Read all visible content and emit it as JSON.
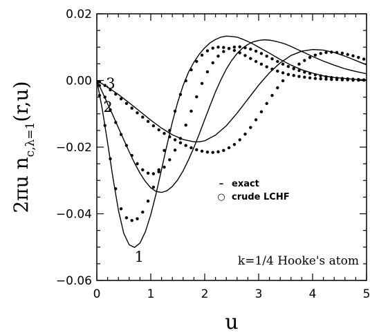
{
  "chart_data": {
    "type": "line",
    "xlabel": "u",
    "ylabel_main": "2πu n",
    "ylabel_sub": "c,λ=1",
    "ylabel_args": "(r,u)",
    "xlim": [
      0,
      5
    ],
    "ylim": [
      -0.06,
      0.02
    ],
    "x_ticks": [
      0,
      1,
      2,
      3,
      4,
      5
    ],
    "x_tick_labels": [
      "0",
      "1",
      "2",
      "3",
      "4",
      "5"
    ],
    "y_ticks": [
      -0.06,
      -0.04,
      -0.02,
      0.0,
      0.02
    ],
    "y_tick_labels": [
      "−0.06",
      "−0.04",
      "−0.02",
      "0.00",
      "0.02"
    ],
    "grid": false,
    "legend": {
      "position": "center-right",
      "entries": [
        {
          "symbol": "–",
          "label": "exact"
        },
        {
          "symbol": "○",
          "label": "crude LCHF"
        }
      ]
    },
    "annotation": "k=1/4 Hooke's atom",
    "curve_labels": [
      {
        "text": "1",
        "x": 0.7,
        "y": -0.0515
      },
      {
        "text": "2",
        "x": 0.12,
        "y": -0.0065
      },
      {
        "text": "3",
        "x": 0.17,
        "y": 0.0005
      }
    ],
    "series": [
      {
        "label": "1",
        "style": "line",
        "x": [
          0,
          0.1,
          0.2,
          0.3,
          0.4,
          0.5,
          0.6,
          0.7,
          0.8,
          0.9,
          1.0,
          1.1,
          1.2,
          1.3,
          1.4,
          1.5,
          1.6,
          1.7,
          1.8,
          1.9,
          2.0,
          2.1,
          2.2,
          2.3,
          2.4,
          2.5,
          2.6,
          2.7,
          2.8,
          2.9,
          3.0,
          3.2,
          3.4,
          3.6,
          3.8,
          4.0,
          4.2,
          4.4,
          4.6,
          4.8,
          5.0
        ],
        "y": [
          0.0,
          -0.0085,
          -0.0187,
          -0.0293,
          -0.0389,
          -0.0459,
          -0.0493,
          -0.0501,
          -0.0488,
          -0.0454,
          -0.0403,
          -0.0339,
          -0.0267,
          -0.0194,
          -0.0125,
          -0.0065,
          -0.0015,
          0.0025,
          0.0055,
          0.0079,
          0.0098,
          0.0113,
          0.0123,
          0.013,
          0.0133,
          0.0132,
          0.013,
          0.0124,
          0.0117,
          0.0109,
          0.01,
          0.0082,
          0.0063,
          0.0046,
          0.0032,
          0.0022,
          0.0014,
          0.0009,
          0.0006,
          0.0003,
          0.0002
        ]
      },
      {
        "label": "2",
        "style": "line",
        "x": [
          0,
          0.1,
          0.2,
          0.3,
          0.4,
          0.5,
          0.6,
          0.7,
          0.8,
          0.9,
          1.0,
          1.1,
          1.2,
          1.3,
          1.4,
          1.5,
          1.6,
          1.7,
          1.8,
          1.9,
          2.0,
          2.1,
          2.2,
          2.3,
          2.4,
          2.5,
          2.6,
          2.7,
          2.8,
          2.9,
          3.0,
          3.1,
          3.2,
          3.3,
          3.4,
          3.5,
          3.6,
          3.8,
          4.0,
          4.2,
          4.4,
          4.6,
          4.8,
          5.0
        ],
        "y": [
          0.0,
          -0.0034,
          -0.007,
          -0.0105,
          -0.0142,
          -0.0178,
          -0.0214,
          -0.0248,
          -0.0278,
          -0.0303,
          -0.0322,
          -0.0333,
          -0.0336,
          -0.0331,
          -0.0318,
          -0.0298,
          -0.0271,
          -0.0238,
          -0.0201,
          -0.016,
          -0.0117,
          -0.0075,
          -0.0034,
          0.0002,
          0.0034,
          0.006,
          0.0081,
          0.0097,
          0.0108,
          0.0116,
          0.012,
          0.0122,
          0.0121,
          0.0118,
          0.0114,
          0.0109,
          0.0102,
          0.0087,
          0.0072,
          0.0058,
          0.0046,
          0.0035,
          0.0027,
          0.002
        ]
      },
      {
        "label": "3",
        "style": "line",
        "x": [
          0,
          0.2,
          0.4,
          0.6,
          0.8,
          1.0,
          1.2,
          1.4,
          1.6,
          1.8,
          1.9,
          2.0,
          2.2,
          2.4,
          2.6,
          2.8,
          3.0,
          3.2,
          3.4,
          3.6,
          3.8,
          4.0,
          4.2,
          4.4,
          4.6,
          4.8,
          5.0
        ],
        "y": [
          0.0,
          -0.002,
          -0.0042,
          -0.0067,
          -0.0093,
          -0.0119,
          -0.0143,
          -0.0163,
          -0.0177,
          -0.0184,
          -0.0184,
          -0.0181,
          -0.0164,
          -0.0136,
          -0.0098,
          -0.0056,
          -0.0014,
          0.0023,
          0.0053,
          0.0075,
          0.0088,
          0.0093,
          0.0091,
          0.0084,
          0.0073,
          0.006,
          0.0047
        ]
      },
      {
        "label": "1",
        "style": "dots",
        "x": [
          0.05,
          0.15,
          0.25,
          0.35,
          0.45,
          0.55,
          0.65,
          0.75,
          0.85,
          0.95,
          1.05,
          1.15,
          1.25,
          1.35,
          1.45,
          1.55,
          1.65,
          1.75,
          1.85,
          1.95,
          2.05,
          2.15,
          2.25,
          2.35,
          2.45,
          2.55,
          2.65,
          2.75,
          2.85,
          2.95,
          3.05,
          3.15,
          3.25,
          3.35,
          3.45,
          3.55,
          3.65,
          3.75,
          3.85,
          3.95,
          4.05,
          4.15,
          4.25,
          4.35,
          4.45,
          4.55,
          4.65,
          4.75,
          4.85,
          4.95
        ],
        "y": [
          -0.0045,
          -0.0135,
          -0.0235,
          -0.0325,
          -0.0385,
          -0.0412,
          -0.042,
          -0.0415,
          -0.0395,
          -0.0362,
          -0.032,
          -0.0268,
          -0.021,
          -0.015,
          -0.0092,
          -0.0042,
          -0.0001,
          0.0032,
          0.0057,
          0.0076,
          0.0089,
          0.0097,
          0.01,
          0.0099,
          0.0096,
          0.009,
          0.0083,
          0.0075,
          0.0066,
          0.0057,
          0.0049,
          0.0041,
          0.0034,
          0.0028,
          0.0023,
          0.0018,
          0.0015,
          0.0012,
          0.001,
          0.0008,
          0.0006,
          0.0005,
          0.0004,
          0.0003,
          0.0003,
          0.0002,
          0.0002,
          0.0001,
          0.0001,
          0.0001
        ]
      },
      {
        "label": "2",
        "style": "dots",
        "x": [
          0.05,
          0.15,
          0.25,
          0.35,
          0.45,
          0.55,
          0.65,
          0.75,
          0.85,
          0.95,
          1.05,
          1.15,
          1.25,
          1.35,
          1.45,
          1.55,
          1.65,
          1.75,
          1.85,
          1.95,
          2.05,
          2.15,
          2.25,
          2.35,
          2.45,
          2.55,
          2.65,
          2.75,
          2.85,
          2.95,
          3.05,
          3.15,
          3.25,
          3.35,
          3.45,
          3.55,
          3.65,
          3.75,
          3.85,
          3.95,
          4.05,
          4.15,
          4.25,
          4.35,
          4.45,
          4.55,
          4.65,
          4.75,
          4.85,
          4.95
        ],
        "y": [
          -0.0015,
          -0.005,
          -0.0088,
          -0.0126,
          -0.0162,
          -0.0195,
          -0.0225,
          -0.025,
          -0.0268,
          -0.0278,
          -0.028,
          -0.0274,
          -0.026,
          -0.0238,
          -0.0209,
          -0.0174,
          -0.0134,
          -0.0092,
          -0.0049,
          -0.0009,
          0.0026,
          0.0053,
          0.0073,
          0.0087,
          0.0096,
          0.01,
          0.0101,
          0.0098,
          0.0094,
          0.0088,
          0.0081,
          0.0073,
          0.0065,
          0.0057,
          0.0049,
          0.0042,
          0.0036,
          0.003,
          0.0025,
          0.0021,
          0.0017,
          0.0014,
          0.0011,
          0.0009,
          0.0007,
          0.0006,
          0.0005,
          0.0004,
          0.0003,
          0.0002
        ]
      },
      {
        "label": "3",
        "style": "dots",
        "x": [
          0.05,
          0.15,
          0.25,
          0.35,
          0.45,
          0.55,
          0.65,
          0.75,
          0.85,
          0.95,
          1.05,
          1.15,
          1.25,
          1.35,
          1.45,
          1.55,
          1.65,
          1.75,
          1.85,
          1.95,
          2.05,
          2.15,
          2.25,
          2.35,
          2.45,
          2.55,
          2.65,
          2.75,
          2.85,
          2.95,
          3.05,
          3.15,
          3.25,
          3.35,
          3.45,
          3.55,
          3.65,
          3.75,
          3.85,
          3.95,
          4.05,
          4.15,
          4.25,
          4.35,
          4.45,
          4.55,
          4.65,
          4.75,
          4.85,
          4.95
        ],
        "y": [
          -0.0004,
          -0.0015,
          -0.0028,
          -0.0041,
          -0.0055,
          -0.0069,
          -0.0083,
          -0.0097,
          -0.011,
          -0.0123,
          -0.0136,
          -0.0148,
          -0.0159,
          -0.0169,
          -0.0178,
          -0.0187,
          -0.0195,
          -0.0202,
          -0.0208,
          -0.0212,
          -0.0215,
          -0.0216,
          -0.0214,
          -0.021,
          -0.0202,
          -0.0192,
          -0.0178,
          -0.0161,
          -0.0141,
          -0.0118,
          -0.0094,
          -0.0069,
          -0.0045,
          -0.0022,
          -0.0001,
          0.0018,
          0.0035,
          0.0049,
          0.006,
          0.0069,
          0.0076,
          0.0081,
          0.0084,
          0.0085,
          0.0084,
          0.0082,
          0.0078,
          0.0074,
          0.0069,
          0.0064
        ]
      }
    ]
  }
}
